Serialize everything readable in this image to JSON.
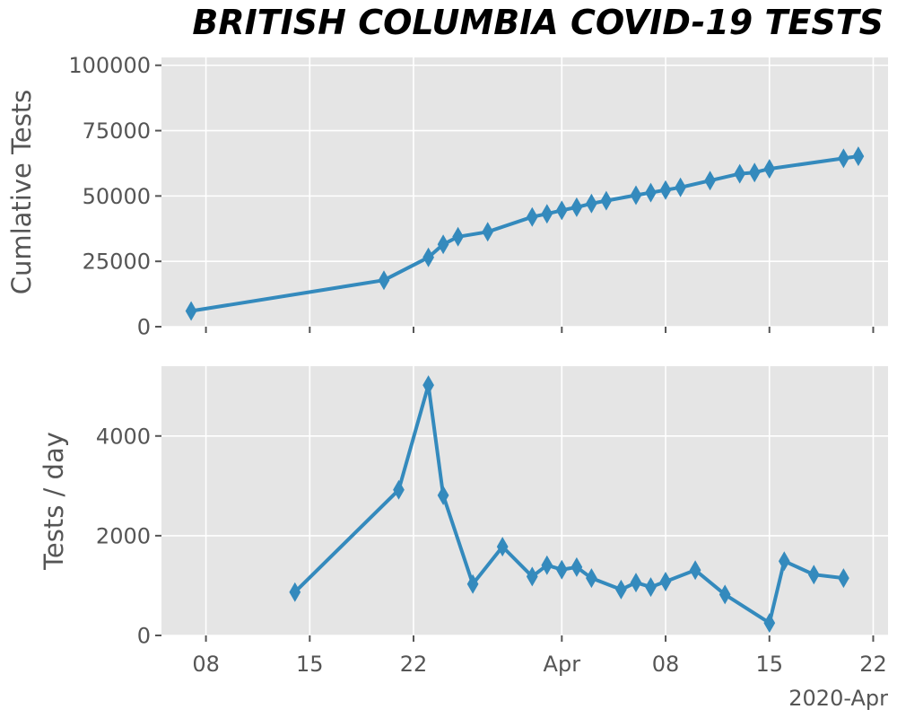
{
  "chart_data": {
    "title": "BRITISH COLUMBIA COVID-19 TESTS",
    "colors": {
      "background": "#ffffff",
      "plot_background": "#e5e5e5",
      "grid": "#ffffff",
      "series": "#348abd",
      "text": "#555555",
      "title": "#000000"
    },
    "x_axis": {
      "type": "date",
      "range": [
        "2020-03-05",
        "2020-04-23"
      ],
      "ticks": [
        {
          "date": "2020-03-08",
          "label": "08"
        },
        {
          "date": "2020-03-15",
          "label": "15"
        },
        {
          "date": "2020-03-22",
          "label": "22"
        },
        {
          "date": "2020-04-01",
          "label": "Apr"
        },
        {
          "date": "2020-04-08",
          "label": "08"
        },
        {
          "date": "2020-04-15",
          "label": "15"
        },
        {
          "date": "2020-04-22",
          "label": "22"
        }
      ],
      "offset_label": "2020-Apr"
    },
    "panels": [
      {
        "type": "line",
        "marker": "thin-diamond",
        "ylabel": "Cumlative Tests",
        "ylim": [
          0,
          103000
        ],
        "yticks": [
          0,
          25000,
          50000,
          75000,
          100000
        ],
        "grid": true,
        "points": [
          {
            "x": "2020-03-07",
            "y": 6000
          },
          {
            "x": "2020-03-20",
            "y": 17800
          },
          {
            "x": "2020-03-23",
            "y": 26500
          },
          {
            "x": "2020-03-24",
            "y": 31500
          },
          {
            "x": "2020-03-25",
            "y": 34400
          },
          {
            "x": "2020-03-27",
            "y": 36300
          },
          {
            "x": "2020-03-30",
            "y": 42000
          },
          {
            "x": "2020-03-31",
            "y": 43200
          },
          {
            "x": "2020-04-01",
            "y": 44500
          },
          {
            "x": "2020-04-02",
            "y": 45700
          },
          {
            "x": "2020-04-03",
            "y": 47100
          },
          {
            "x": "2020-04-04",
            "y": 48200
          },
          {
            "x": "2020-04-06",
            "y": 50300
          },
          {
            "x": "2020-04-07",
            "y": 51300
          },
          {
            "x": "2020-04-08",
            "y": 52300
          },
          {
            "x": "2020-04-09",
            "y": 53300
          },
          {
            "x": "2020-04-11",
            "y": 55900
          },
          {
            "x": "2020-04-13",
            "y": 58500
          },
          {
            "x": "2020-04-14",
            "y": 59000
          },
          {
            "x": "2020-04-15",
            "y": 60400
          },
          {
            "x": "2020-04-20",
            "y": 64400
          },
          {
            "x": "2020-04-21",
            "y": 65200
          }
        ]
      },
      {
        "type": "line",
        "marker": "thin-diamond",
        "ylabel": "Tests / day",
        "ylim": [
          0,
          5400
        ],
        "yticks": [
          0,
          2000,
          4000
        ],
        "grid": true,
        "points": [
          {
            "x": "2020-03-14",
            "y": 870
          },
          {
            "x": "2020-03-21",
            "y": 2920
          },
          {
            "x": "2020-03-23",
            "y": 5020
          },
          {
            "x": "2020-03-24",
            "y": 2810
          },
          {
            "x": "2020-03-26",
            "y": 1030
          },
          {
            "x": "2020-03-28",
            "y": 1780
          },
          {
            "x": "2020-03-30",
            "y": 1180
          },
          {
            "x": "2020-03-31",
            "y": 1410
          },
          {
            "x": "2020-04-01",
            "y": 1320
          },
          {
            "x": "2020-04-02",
            "y": 1370
          },
          {
            "x": "2020-04-03",
            "y": 1150
          },
          {
            "x": "2020-04-05",
            "y": 920
          },
          {
            "x": "2020-04-06",
            "y": 1060
          },
          {
            "x": "2020-04-07",
            "y": 970
          },
          {
            "x": "2020-04-08",
            "y": 1080
          },
          {
            "x": "2020-04-10",
            "y": 1310
          },
          {
            "x": "2020-04-12",
            "y": 820
          },
          {
            "x": "2020-04-15",
            "y": 250
          },
          {
            "x": "2020-04-16",
            "y": 1490
          },
          {
            "x": "2020-04-18",
            "y": 1220
          },
          {
            "x": "2020-04-20",
            "y": 1150
          }
        ]
      }
    ]
  }
}
